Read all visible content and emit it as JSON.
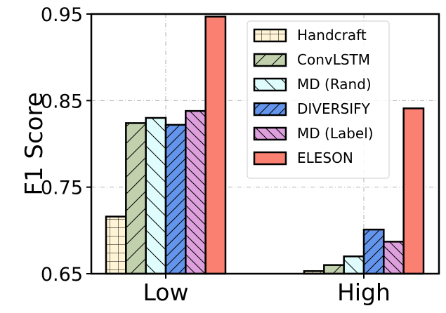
{
  "chart_data": {
    "type": "bar",
    "title": "",
    "xlabel": "",
    "ylabel": "F1 Score",
    "ylim": [
      0.65,
      0.95
    ],
    "yticks": [
      0.65,
      0.75,
      0.85,
      0.95
    ],
    "ytick_labels": [
      "0.65",
      "0.75",
      "0.85",
      "0.95"
    ],
    "categories": [
      "Low",
      "High"
    ],
    "grid": true,
    "legend_position": "top-right",
    "series": [
      {
        "name": "Handcraft",
        "color": "#fff5d6",
        "hatch": "grid",
        "values": [
          0.716,
          0.653
        ]
      },
      {
        "name": "ConvLSTM",
        "color": "#c2d1ad",
        "hatch": "slash",
        "values": [
          0.824,
          0.66
        ]
      },
      {
        "name": "MD (Rand)",
        "color": "#e0fdfd",
        "hatch": "backslash",
        "values": [
          0.83,
          0.67
        ]
      },
      {
        "name": "DIVERSIFY",
        "color": "#6495ed",
        "hatch": "slash-dense",
        "values": [
          0.822,
          0.701
        ]
      },
      {
        "name": "MD (Label)",
        "color": "#dda0dd",
        "hatch": "backslash-dense",
        "values": [
          0.838,
          0.687
        ]
      },
      {
        "name": "ELESON",
        "color": "#fa8072",
        "hatch": "none",
        "values": [
          0.947,
          0.841
        ]
      }
    ]
  }
}
